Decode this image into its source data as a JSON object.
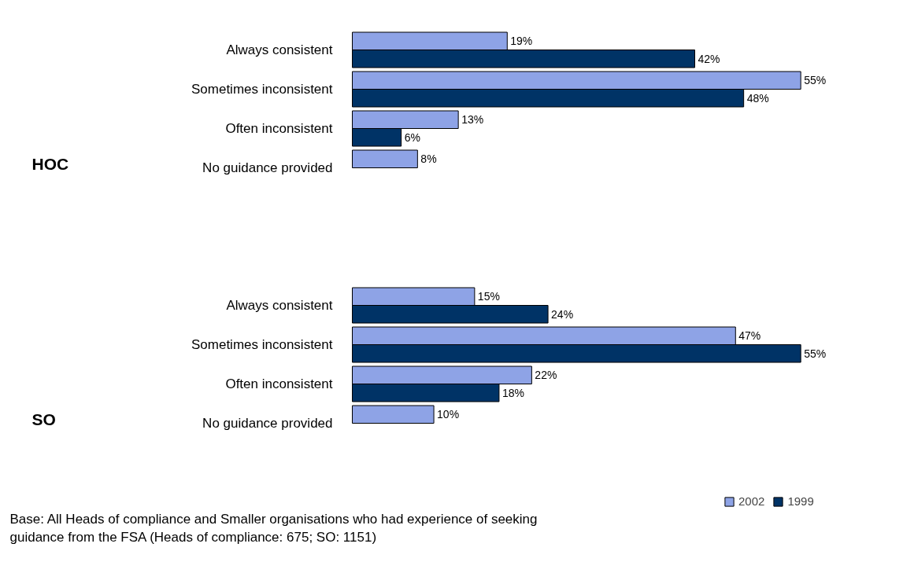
{
  "chart_data": [
    {
      "type": "bar",
      "orientation": "horizontal",
      "ylabel": "HOC",
      "categories": [
        "Always consistent",
        "Sometimes inconsistent",
        "Often inconsistent",
        "No guidance provided"
      ],
      "series": [
        {
          "name": "2002",
          "color": "#8ea3e6",
          "values": [
            19,
            55,
            13,
            8
          ],
          "value_labels": [
            "19%",
            "55%",
            "13%",
            "8%"
          ]
        },
        {
          "name": "1999",
          "color": "#003366",
          "values": [
            42,
            48,
            6,
            null
          ],
          "value_labels": [
            "42%",
            "48%",
            "6%",
            null
          ]
        }
      ],
      "grid": false,
      "legend": "bottom right"
    },
    {
      "type": "bar",
      "orientation": "horizontal",
      "ylabel": "SO",
      "categories": [
        "Always consistent",
        "Sometimes inconsistent",
        "Often inconsistent",
        "No guidance provided"
      ],
      "series": [
        {
          "name": "2002",
          "color": "#8ea3e6",
          "values": [
            15,
            47,
            22,
            10
          ],
          "value_labels": [
            "15%",
            "47%",
            "22%",
            "10%"
          ]
        },
        {
          "name": "1999",
          "color": "#003366",
          "values": [
            24,
            55,
            18,
            null
          ],
          "value_labels": [
            "24%",
            "55%",
            "18%",
            null
          ]
        }
      ],
      "grid": false,
      "legend": "bottom right",
      "annotations": [
        "Base: All Heads of compliance and Smaller organisations who had experience of seeking guidance from the FSA (Heads of compliance: 675; SO: 1151)"
      ]
    }
  ]
}
